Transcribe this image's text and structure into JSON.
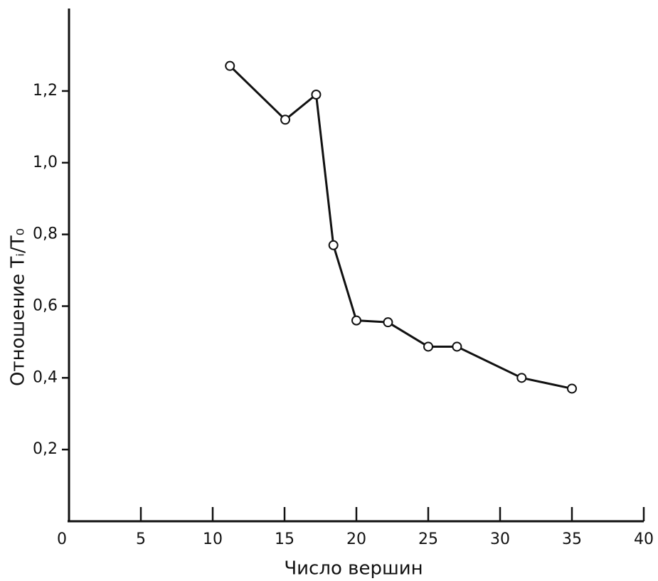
{
  "chart_data": {
    "type": "line",
    "x_label": "Число вершин",
    "y_label": "Отношение Tᵢ/T₀",
    "xlim": [
      0,
      40
    ],
    "ylim": [
      0,
      1.43
    ],
    "xticks": [
      0,
      5,
      10,
      15,
      20,
      25,
      30,
      35,
      40
    ],
    "yticks": [
      {
        "value": 0.2,
        "label": "0,2"
      },
      {
        "value": 0.4,
        "label": "0,4"
      },
      {
        "value": 0.6,
        "label": "0,6"
      },
      {
        "value": 0.8,
        "label": "0,8"
      },
      {
        "value": 1.0,
        "label": "1,0"
      },
      {
        "value": 1.2,
        "label": "1,2"
      }
    ],
    "grid": false,
    "series": [
      {
        "color": "#111111",
        "x": [
          11.2,
          15.05,
          17.2,
          18.4,
          20.0,
          22.2,
          25.0,
          27.0,
          31.5,
          35.0
        ],
        "values": [
          1.27,
          1.12,
          1.19,
          0.77,
          0.56,
          0.555,
          0.487,
          0.487,
          0.4,
          0.37
        ]
      }
    ]
  }
}
